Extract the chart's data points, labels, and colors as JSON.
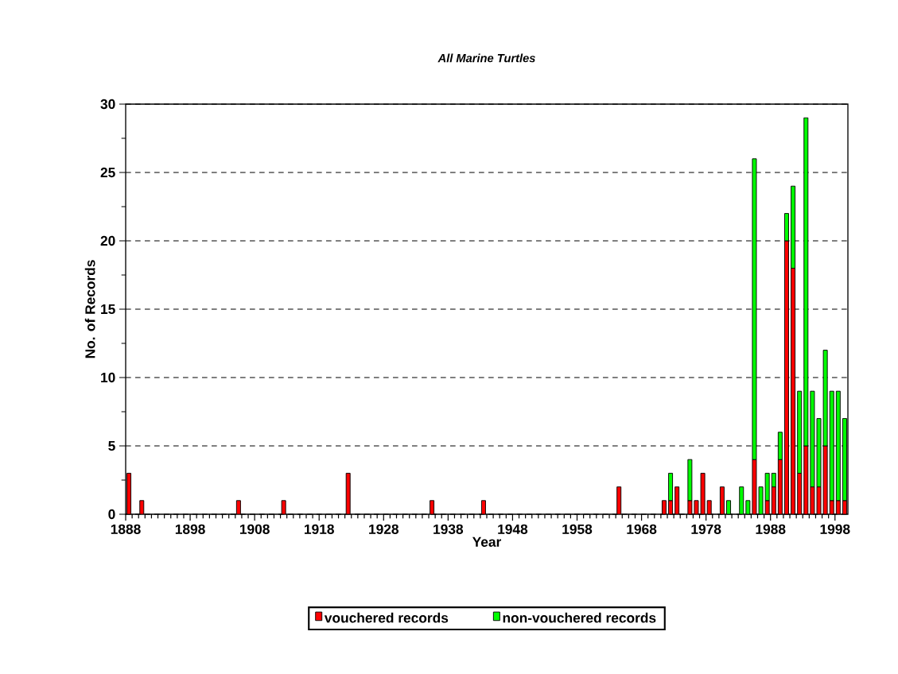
{
  "chart_data": {
    "type": "bar",
    "stacked": true,
    "title": "*All Marine Turtles*",
    "xlabel": "Year",
    "ylabel": "No. of Records",
    "x": [
      1888,
      1890,
      1905,
      1912,
      1922,
      1935,
      1943,
      1964,
      1971,
      1972,
      1973,
      1975,
      1976,
      1977,
      1978,
      1980,
      1981,
      1983,
      1984,
      1985,
      1986,
      1987,
      1988,
      1989,
      1990,
      1991,
      1992,
      1993,
      1994,
      1995,
      1996,
      1997,
      1998,
      1999
    ],
    "series": [
      {
        "name": "vouchered records",
        "color": "#ff0000",
        "values": [
          3,
          1,
          1,
          1,
          3,
          1,
          1,
          2,
          1,
          1,
          2,
          1,
          1,
          3,
          1,
          2,
          0,
          0,
          0,
          4,
          0,
          1,
          2,
          4,
          20,
          18,
          3,
          5,
          2,
          2,
          5,
          1,
          1,
          1
        ]
      },
      {
        "name": "non-vouchered records",
        "color": "#00ff00",
        "values": [
          0,
          0,
          0,
          0,
          0,
          0,
          0,
          0,
          0,
          2,
          0,
          3,
          0,
          0,
          0,
          0,
          1,
          2,
          1,
          22,
          2,
          2,
          1,
          2,
          2,
          6,
          6,
          24,
          7,
          5,
          7,
          8,
          8,
          6
        ]
      }
    ],
    "xlim": [
      1888,
      2000
    ],
    "xticks": [
      1888,
      1898,
      1908,
      1918,
      1928,
      1938,
      1948,
      1958,
      1968,
      1978,
      1988,
      1998
    ],
    "ylim": [
      0,
      30
    ],
    "yticks": [
      0,
      5,
      10,
      15,
      20,
      25,
      30
    ],
    "grid": "y",
    "legend": "bottom"
  }
}
